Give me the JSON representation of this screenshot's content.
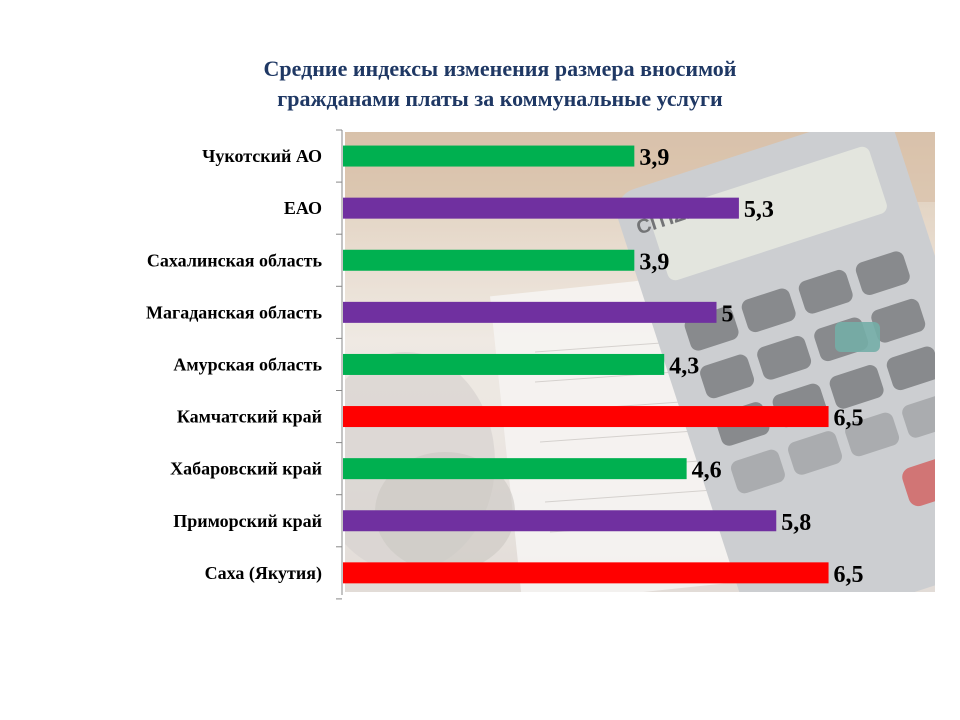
{
  "chart_data": {
    "type": "bar",
    "orientation": "horizontal",
    "title_lines": [
      "Средние индексы изменения размера вносимой",
      "гражданами платы за коммунальные услуги"
    ],
    "categories": [
      "Чукотский АО",
      "ЕАО",
      "Сахалинская область",
      "Магаданская область",
      "Амурская область",
      "Камчатский край",
      "Хабаровский край",
      "Приморский край",
      "Саха (Якутия)"
    ],
    "values": [
      3.9,
      5.3,
      3.9,
      5,
      4.3,
      6.5,
      4.6,
      5.8,
      6.5
    ],
    "value_labels": [
      "3,9",
      "5,3",
      "3,9",
      "5",
      "4,3",
      "6,5",
      "4,6",
      "5,8",
      "6,5"
    ],
    "bar_colors": [
      "#00b050",
      "#7030a0",
      "#00b050",
      "#7030a0",
      "#00b050",
      "#ff0000",
      "#00b050",
      "#7030a0",
      "#ff0000"
    ],
    "xlim": [
      0,
      6.5
    ],
    "grid": false,
    "legend": "none",
    "background": "calculator-photo"
  }
}
